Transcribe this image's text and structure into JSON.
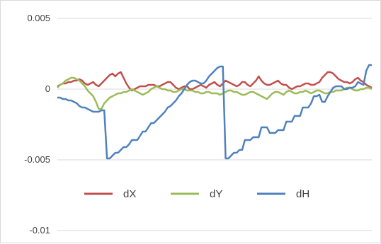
{
  "chart_data": {
    "type": "line",
    "title": "",
    "xlabel": "",
    "ylabel": "",
    "ylim": [
      -0.01,
      0.005
    ],
    "yticks": [
      "0.005",
      "0",
      "-0.005",
      "-0.01"
    ],
    "yticks_values": [
      0.005,
      0,
      -0.005,
      -0.01
    ],
    "x": [
      1,
      2,
      3,
      4,
      5,
      6,
      7,
      8,
      9,
      10,
      11,
      12,
      13,
      14,
      15,
      16,
      17,
      18,
      19,
      20,
      21,
      22,
      23,
      24,
      25,
      26,
      27,
      28,
      29,
      30,
      31,
      32,
      33,
      34,
      35,
      36,
      37,
      38,
      39,
      40,
      41,
      42,
      43,
      44,
      45,
      46,
      47,
      48,
      49,
      50,
      51,
      52,
      53,
      54,
      55,
      56,
      57,
      58,
      59,
      60,
      61,
      62,
      63,
      64,
      65,
      66,
      67,
      68,
      69,
      70,
      71,
      72,
      73,
      74,
      75,
      76,
      77,
      78,
      79,
      80,
      81,
      82,
      83,
      84,
      85,
      86,
      87,
      88,
      89,
      90,
      91,
      92,
      93,
      94,
      95,
      96,
      97,
      98,
      99,
      100,
      101,
      102,
      103,
      104,
      105,
      106,
      107,
      108,
      109,
      110,
      111,
      112,
      113,
      114,
      115
    ],
    "grid": "horizontal",
    "legend": "bottom",
    "series": [
      {
        "name": "dX",
        "color": "#c0504d",
        "values": [
          0.0002,
          0.0003,
          0.0004,
          0.0004,
          0.0005,
          0.0005,
          0.0006,
          0.0006,
          0.0007,
          0.0006,
          0.0004,
          0.0003,
          0.0004,
          0.0005,
          0.0003,
          0.0002,
          0.0004,
          0.0006,
          0.0008,
          0.001,
          0.0011,
          0.0009,
          0.0011,
          0.0012,
          0.0008,
          0.0004,
          0.0001,
          -0.0001,
          0.0,
          0.0001,
          0.0002,
          0.0002,
          0.0002,
          0.0003,
          0.0003,
          0.0003,
          0.0002,
          0.0002,
          0.0003,
          0.0004,
          0.0005,
          0.0005,
          0.0003,
          0.0001,
          0.0,
          0.0001,
          0.0002,
          0.0002,
          0.0,
          0.0,
          0.0001,
          0.0002,
          0.0003,
          0.0002,
          0.0001,
          0.0003,
          0.0004,
          0.0005,
          0.0003,
          0.0002,
          0.0004,
          0.0006,
          0.0005,
          0.0004,
          0.0003,
          0.0002,
          0.0003,
          0.0005,
          0.0005,
          0.0003,
          0.0002,
          0.0004,
          0.0006,
          0.0009,
          0.0006,
          0.0004,
          0.0003,
          0.0003,
          0.0004,
          0.0005,
          0.0006,
          0.0004,
          0.0003,
          0.0003,
          0.0001,
          0.0,
          0.0001,
          0.0002,
          0.0002,
          0.0003,
          0.0004,
          0.0004,
          0.0003,
          0.0003,
          0.0004,
          0.0005,
          0.0008,
          0.001,
          0.0012,
          0.0012,
          0.0011,
          0.0009,
          0.0007,
          0.0006,
          0.0005,
          0.0005,
          0.0004,
          0.0005,
          0.0007,
          0.0008,
          0.0006,
          0.0005,
          0.0003,
          0.0002,
          0.0001
        ]
      },
      {
        "name": "dY",
        "color": "#9bbb59",
        "values": [
          0.0001,
          0.0003,
          0.0004,
          0.0006,
          0.0007,
          0.0008,
          0.0008,
          0.0007,
          0.0006,
          0.0004,
          0.0002,
          -0.0001,
          -0.0003,
          -0.0005,
          -0.0009,
          -0.0014,
          -0.0014,
          -0.001,
          -0.0008,
          -0.0006,
          -0.0005,
          -0.0004,
          -0.0003,
          -0.0003,
          -0.0002,
          -0.0002,
          -0.0001,
          0.0,
          -0.0001,
          -0.0002,
          -0.0003,
          -0.0004,
          -0.0003,
          -0.0002,
          0.0,
          0.0001,
          0.0002,
          0.0001,
          0.0,
          0.0,
          -0.0001,
          -0.0001,
          -0.0002,
          -0.0002,
          -0.0001,
          0.0,
          0.0,
          -0.0001,
          -0.0001,
          -0.0001,
          -0.0002,
          -0.0002,
          -0.0003,
          -0.0003,
          -0.0002,
          -0.0002,
          -0.0003,
          -0.0003,
          -0.0003,
          -0.0004,
          -0.0003,
          -0.0002,
          -0.0001,
          -0.0001,
          -0.0002,
          -0.0002,
          -0.0003,
          -0.0004,
          -0.0004,
          -0.0003,
          -0.0002,
          -0.0002,
          -0.0003,
          -0.0004,
          -0.0005,
          -0.0006,
          -0.0007,
          -0.0005,
          -0.0003,
          -0.0002,
          -0.0002,
          -0.0003,
          -0.0004,
          -0.0002,
          -0.0001,
          -0.0002,
          -0.0003,
          -0.0003,
          -0.0002,
          -0.0002,
          -0.0001,
          -0.0002,
          -0.0003,
          -0.0002,
          -0.0001,
          -0.0001,
          -0.0002,
          -0.0003,
          -0.0003,
          -0.0002,
          -0.0002,
          -0.0001,
          -0.0001,
          -0.0001,
          0.0,
          0.0001,
          0.0001,
          0.0,
          -0.0001,
          -0.0001,
          0.0,
          0.0,
          0.0001,
          0.0001,
          0.0
        ]
      },
      {
        "name": "dH",
        "color": "#4f81bd",
        "values": [
          -0.0006,
          -0.0006,
          -0.0007,
          -0.0007,
          -0.0008,
          -0.0008,
          -0.0009,
          -0.001,
          -0.0012,
          -0.0013,
          -0.0013,
          -0.0014,
          -0.0015,
          -0.0016,
          -0.0016,
          -0.0016,
          -0.0015,
          -0.0015,
          -0.0049,
          -0.0049,
          -0.0047,
          -0.0045,
          -0.0045,
          -0.0043,
          -0.0041,
          -0.0041,
          -0.0039,
          -0.0036,
          -0.0036,
          -0.0036,
          -0.0033,
          -0.003,
          -0.003,
          -0.0027,
          -0.0024,
          -0.0024,
          -0.0022,
          -0.002,
          -0.0018,
          -0.0016,
          -0.0013,
          -0.0012,
          -0.001,
          -0.0008,
          -0.0005,
          -0.0003,
          0.0,
          0.0003,
          0.0005,
          0.0006,
          0.0006,
          0.0005,
          0.0004,
          0.0004,
          0.0006,
          0.0009,
          0.0011,
          0.0013,
          0.0015,
          0.0016,
          0.0016,
          -0.0049,
          -0.0049,
          -0.0047,
          -0.0045,
          -0.0045,
          -0.0043,
          -0.0043,
          -0.0036,
          -0.0036,
          -0.0036,
          -0.0034,
          -0.0034,
          -0.0034,
          -0.0027,
          -0.0027,
          -0.0027,
          -0.0031,
          -0.0031,
          -0.0031,
          -0.0029,
          -0.0029,
          -0.0029,
          -0.0023,
          -0.0023,
          -0.0023,
          -0.0019,
          -0.0019,
          -0.0019,
          -0.0013,
          -0.0013,
          -0.0013,
          -0.001,
          -0.0005,
          -0.0005,
          -0.0004,
          -0.0009,
          -0.0009,
          -0.0005,
          -0.0002,
          0.0001,
          0.0002,
          0.0002,
          0.0002,
          0.0,
          0.0,
          0.0001,
          0.0001,
          0.0002,
          0.0005,
          0.0004,
          0.0003,
          0.0013,
          0.0017,
          0.0017
        ]
      }
    ]
  }
}
